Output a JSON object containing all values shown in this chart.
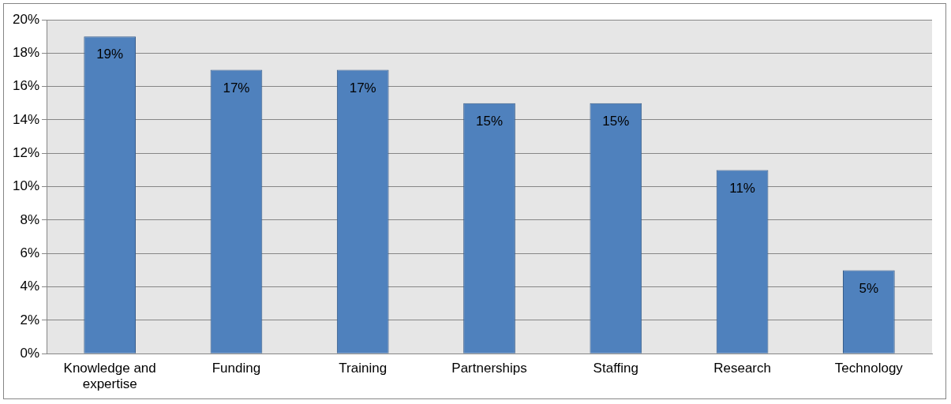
{
  "chart_data": {
    "type": "bar",
    "categories": [
      "Knowledge and expertise",
      "Funding",
      "Training",
      "Partnerships",
      "Staffing",
      "Research",
      "Technology"
    ],
    "values": [
      19,
      17,
      17,
      15,
      15,
      11,
      5
    ],
    "value_labels": [
      "19%",
      "17%",
      "17%",
      "15%",
      "15%",
      "11%",
      "5%"
    ],
    "color": "#4f81bd",
    "ylim": [
      0,
      20
    ],
    "yticks": [
      {
        "value": 0,
        "label": "0%"
      },
      {
        "value": 2,
        "label": "2%"
      },
      {
        "value": 4,
        "label": "4%"
      },
      {
        "value": 6,
        "label": "6%"
      },
      {
        "value": 8,
        "label": "8%"
      },
      {
        "value": 10,
        "label": "10%"
      },
      {
        "value": 12,
        "label": "12%"
      },
      {
        "value": 14,
        "label": "14%"
      },
      {
        "value": 16,
        "label": "16%"
      },
      {
        "value": 18,
        "label": "18%"
      },
      {
        "value": 20,
        "label": "20%"
      }
    ],
    "grid": "y",
    "legend": false
  }
}
